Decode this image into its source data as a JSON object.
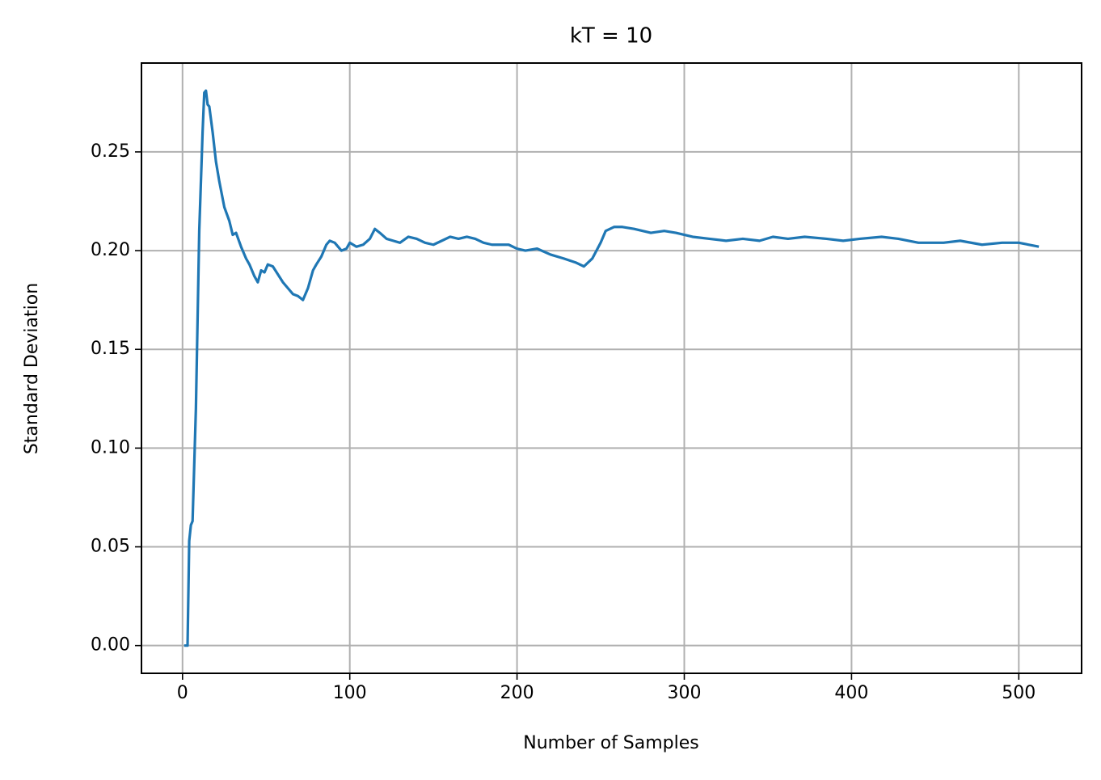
{
  "chart_data": {
    "type": "line",
    "title": "kT = 10",
    "x_label": "Number of Samples",
    "y_label": "Standard Deviation",
    "xlim": [
      -24.55,
      537.55
    ],
    "ylim": [
      -0.01405,
      0.295
    ],
    "xticks": [
      0,
      100,
      200,
      300,
      400,
      500
    ],
    "yticks": [
      {
        "value": 0,
        "label": "0.00"
      },
      {
        "value": 0.05,
        "label": "0.05"
      },
      {
        "value": 0.1,
        "label": "0.10"
      },
      {
        "value": 0.15,
        "label": "0.15"
      },
      {
        "value": 0.2,
        "label": "0.20"
      },
      {
        "value": 0.25,
        "label": "0.25"
      }
    ],
    "grid": true,
    "x": [
      1,
      2,
      3,
      4,
      5,
      6,
      8,
      10,
      12,
      13,
      14,
      15,
      16,
      18,
      20,
      22,
      25,
      28,
      30,
      32,
      35,
      38,
      40,
      43,
      45,
      47,
      49,
      51,
      54,
      57,
      60,
      63,
      66,
      69,
      72,
      75,
      78,
      80,
      83,
      86,
      88,
      91,
      95,
      98,
      100,
      104,
      108,
      112,
      115,
      118,
      122,
      126,
      130,
      135,
      140,
      145,
      150,
      155,
      160,
      165,
      170,
      175,
      180,
      185,
      190,
      195,
      200,
      205,
      212,
      220,
      228,
      235,
      240,
      245,
      250,
      253,
      258,
      263,
      270,
      280,
      288,
      295,
      305,
      315,
      325,
      335,
      345,
      353,
      362,
      372,
      385,
      395,
      405,
      418,
      428,
      440,
      455,
      465,
      478,
      490,
      500,
      512
    ],
    "series": [
      {
        "name": "std",
        "color": "#1f77b4",
        "values": [
          0,
          0,
          0,
          0.053,
          0.061,
          0.063,
          0.12,
          0.21,
          0.26,
          0.28,
          0.281,
          0.274,
          0.273,
          0.26,
          0.245,
          0.235,
          0.222,
          0.215,
          0.208,
          0.209,
          0.202,
          0.196,
          0.193,
          0.187,
          0.184,
          0.19,
          0.189,
          0.193,
          0.192,
          0.188,
          0.184,
          0.181,
          0.178,
          0.177,
          0.175,
          0.181,
          0.19,
          0.193,
          0.197,
          0.203,
          0.205,
          0.204,
          0.2,
          0.201,
          0.204,
          0.202,
          0.203,
          0.206,
          0.211,
          0.209,
          0.206,
          0.205,
          0.204,
          0.207,
          0.206,
          0.204,
          0.203,
          0.205,
          0.207,
          0.206,
          0.207,
          0.206,
          0.204,
          0.203,
          0.203,
          0.203,
          0.201,
          0.2,
          0.201,
          0.198,
          0.196,
          0.194,
          0.192,
          0.196,
          0.204,
          0.21,
          0.212,
          0.212,
          0.211,
          0.209,
          0.21,
          0.209,
          0.207,
          0.206,
          0.205,
          0.206,
          0.205,
          0.207,
          0.206,
          0.207,
          0.206,
          0.205,
          0.206,
          0.207,
          0.206,
          0.204,
          0.204,
          0.205,
          0.203,
          0.204,
          0.204,
          0.202
        ]
      }
    ]
  }
}
